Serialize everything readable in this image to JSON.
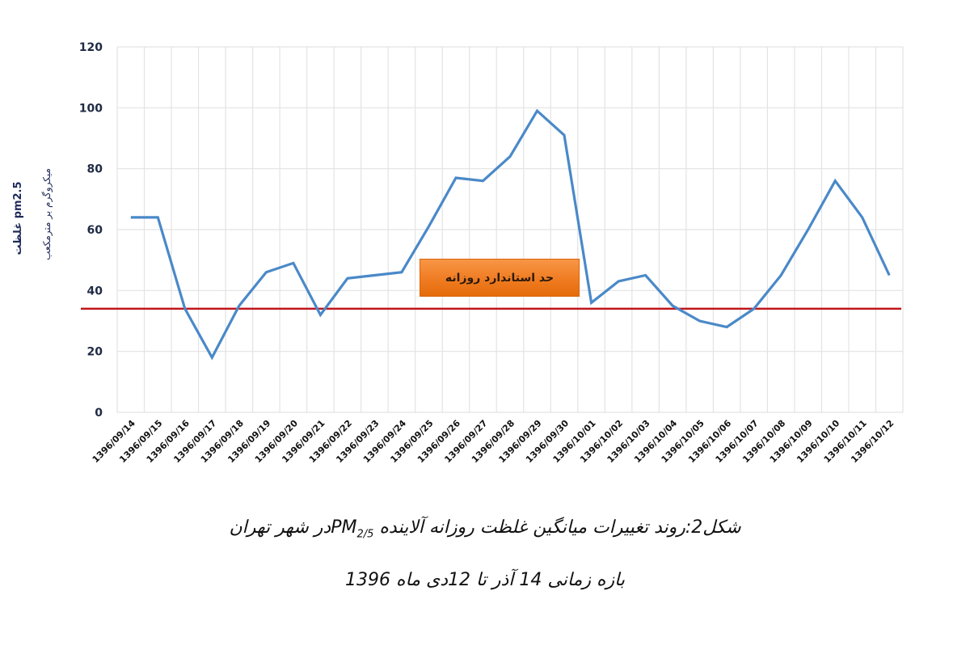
{
  "chart_data": {
    "type": "line",
    "title": "",
    "xlabel": "",
    "ylabel": "غلظت pm2.5",
    "ylabel_units": "میکروگرم بر مترمکعب",
    "ylim": [
      0,
      120
    ],
    "yticks": [
      0,
      20,
      40,
      60,
      80,
      100,
      120
    ],
    "grid": true,
    "legend": null,
    "categories": [
      "1396/09/14",
      "1396/09/15",
      "1396/09/16",
      "1396/09/17",
      "1396/09/18",
      "1396/09/19",
      "1396/09/20",
      "1396/09/21",
      "1396/09/22",
      "1396/09/23",
      "1396/09/24",
      "1396/09/25",
      "1396/09/26",
      "1396/09/27",
      "1396/09/28",
      "1396/09/29",
      "1396/09/30",
      "1396/10/01",
      "1396/10/02",
      "1396/10/03",
      "1396/10/04",
      "1396/10/05",
      "1396/10/06",
      "1396/10/07",
      "1396/10/08",
      "1396/10/09",
      "1396/10/10",
      "1396/10/11",
      "1396/10/12"
    ],
    "series": [
      {
        "name": "PM2.5 daily average",
        "color": "#4a89c8",
        "values": [
          64,
          64,
          34,
          18,
          35,
          46,
          49,
          32,
          44,
          45,
          46,
          61,
          77,
          76,
          84,
          99,
          91,
          36,
          43,
          45,
          35,
          30,
          28,
          34,
          45,
          60,
          76,
          64,
          45
        ]
      }
    ],
    "reference_line": {
      "name": "daily standard limit",
      "value": 34,
      "color": "#c0161b"
    },
    "annotations": [
      {
        "text": "حد استاندارد روزانه",
        "color": "#f07c22"
      }
    ]
  },
  "captions": {
    "line1_prefix": "شکل2:روند تغییرات میانگین غلظت روزانه آلاینده ",
    "line1_pm": "PM",
    "line1_pm_sub": "2/5",
    "line1_suffix": "در شهر تهران",
    "line2": "بازه زمانی 14 آذر تا 12دی ماه 1396"
  },
  "colors": {
    "grid": "#e3e3e3",
    "axis_text": "#1f2a44"
  }
}
